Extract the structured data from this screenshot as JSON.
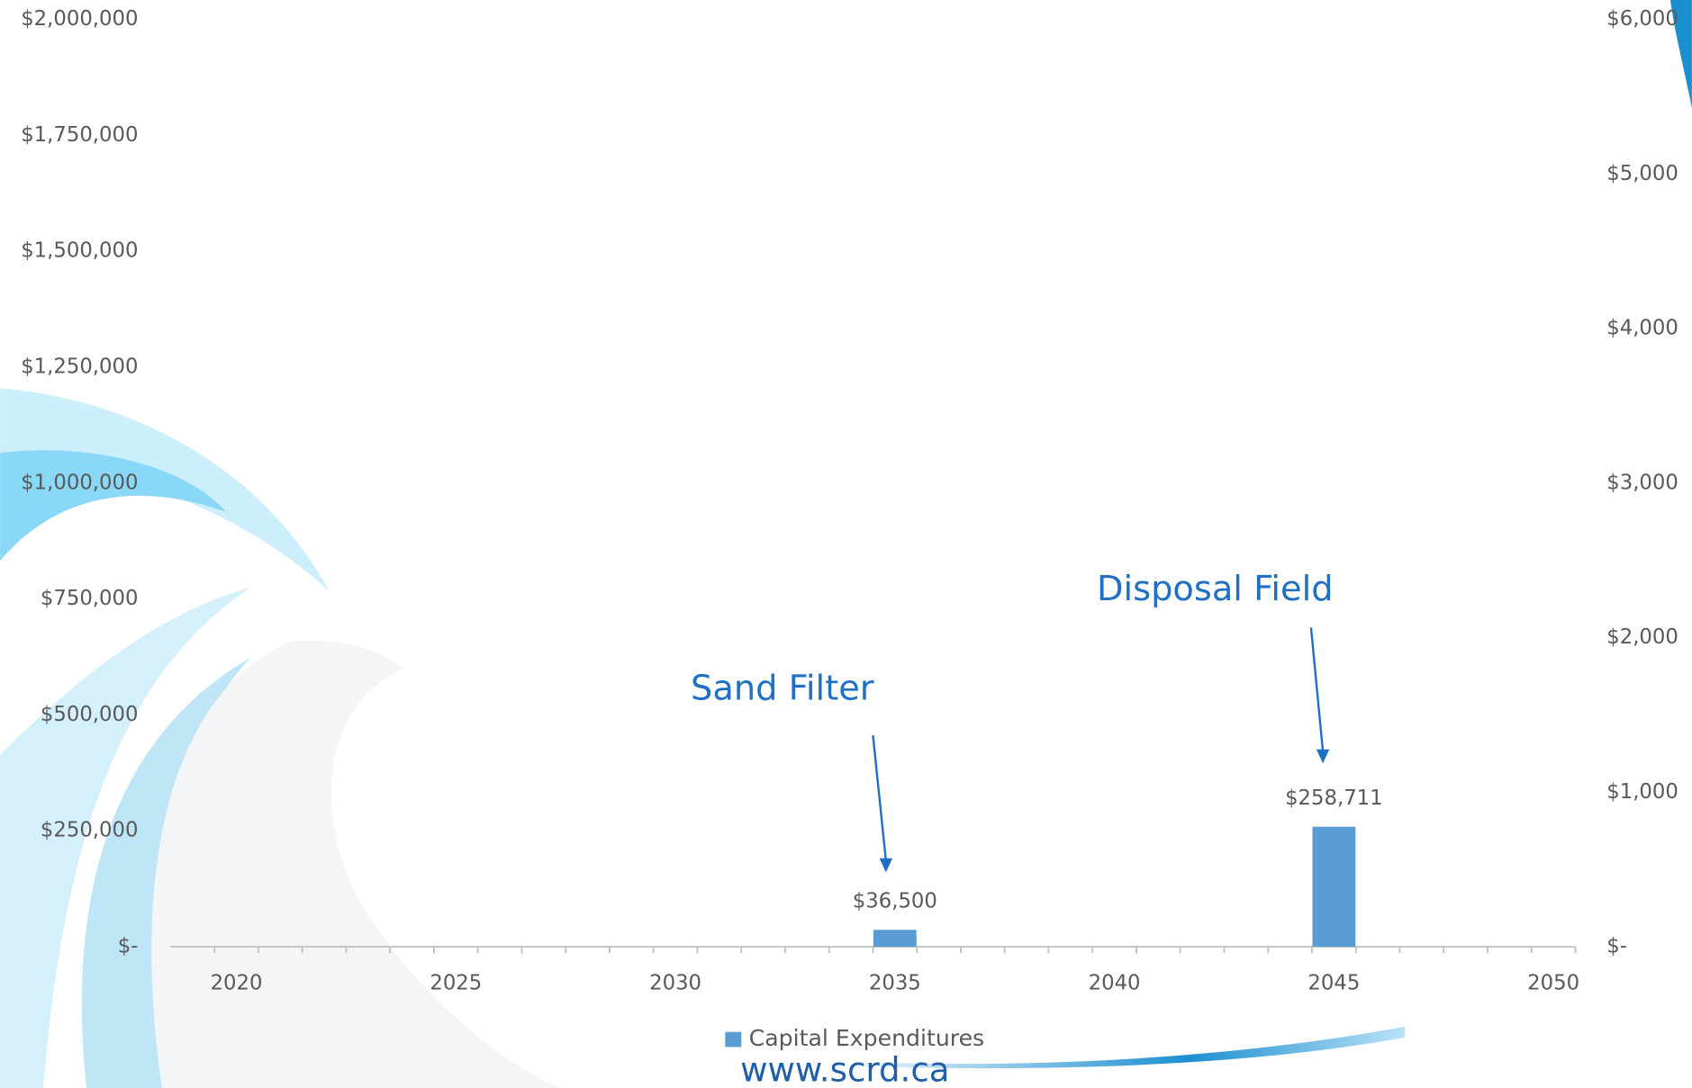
{
  "chart_data": {
    "type": "bar",
    "categories": [
      null,
      "2020",
      null,
      null,
      null,
      null,
      "2025",
      null,
      null,
      null,
      null,
      "2030",
      null,
      null,
      null,
      null,
      "2035",
      null,
      null,
      null,
      null,
      "2040",
      null,
      null,
      null,
      null,
      "2045",
      null,
      null,
      null,
      null,
      "2050"
    ],
    "series": [
      {
        "name": "Capital Expenditures",
        "color": "#5b9bd5",
        "values": [
          0,
          0,
          0,
          0,
          0,
          0,
          0,
          0,
          0,
          0,
          0,
          0,
          0,
          0,
          0,
          0,
          36500,
          0,
          0,
          0,
          0,
          0,
          0,
          0,
          0,
          0,
          258711,
          0,
          0,
          0,
          0,
          0
        ],
        "value_labels": [
          null,
          null,
          null,
          null,
          null,
          null,
          null,
          null,
          null,
          null,
          null,
          null,
          null,
          null,
          null,
          null,
          "$36,500",
          null,
          null,
          null,
          null,
          null,
          null,
          null,
          null,
          null,
          "$258,711",
          null,
          null,
          null,
          null,
          null
        ]
      }
    ],
    "ylim": [
      0,
      2000000
    ],
    "yticks": [
      {
        "value": 0,
        "label": "$-"
      },
      {
        "value": 250000,
        "label": "$250,000"
      },
      {
        "value": 500000,
        "label": "$500,000"
      },
      {
        "value": 750000,
        "label": "$750,000"
      },
      {
        "value": 1000000,
        "label": "$1,000,000"
      },
      {
        "value": 1250000,
        "label": "$1,250,000"
      },
      {
        "value": 1500000,
        "label": "$1,500,000"
      },
      {
        "value": 1750000,
        "label": "$1,750,000"
      },
      {
        "value": 2000000,
        "label": "$2,000,000"
      }
    ],
    "y2lim": [
      0,
      6000
    ],
    "y2ticks": [
      {
        "value": 0,
        "label": "$-"
      },
      {
        "value": 1000,
        "label": "$1,000"
      },
      {
        "value": 2000,
        "label": "$2,000"
      },
      {
        "value": 3000,
        "label": "$3,000"
      },
      {
        "value": 4000,
        "label": "$4,000"
      },
      {
        "value": 5000,
        "label": "$5,000"
      },
      {
        "value": 6000,
        "label": "$6,000"
      }
    ],
    "grid": false,
    "annotations": [
      "Sand Filter",
      "Disposal Field"
    ],
    "footer": "www.scrd.ca"
  }
}
